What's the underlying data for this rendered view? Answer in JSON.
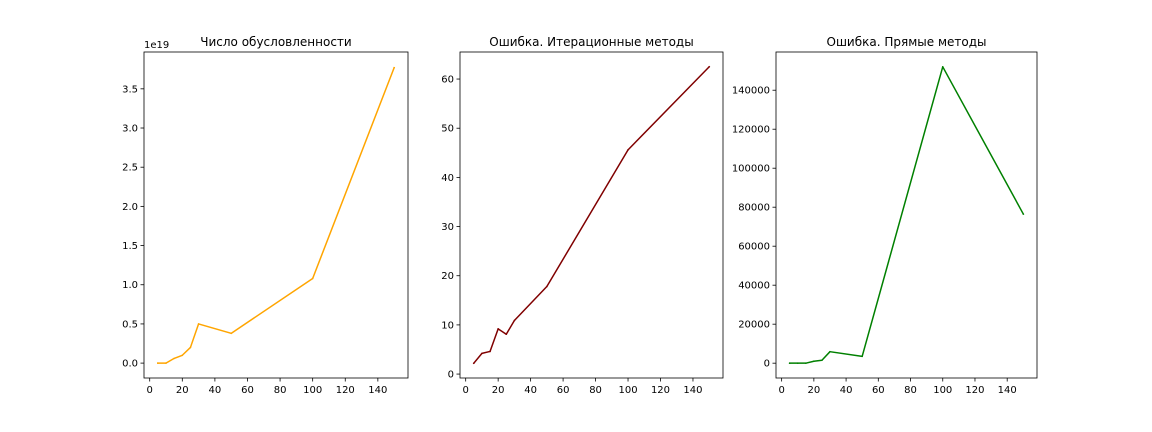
{
  "chart_data": [
    {
      "type": "line",
      "title": "Число обусловленности",
      "offset_label": "1e19",
      "color": "#ffa500",
      "x": [
        5,
        10,
        15,
        20,
        25,
        30,
        50,
        100,
        150
      ],
      "y": [
        0.0,
        0.0,
        0.06,
        0.1,
        0.2,
        0.5,
        0.38,
        1.08,
        3.77
      ],
      "xlim": [
        -3.5,
        158.5
      ],
      "ylim": [
        -0.19,
        3.97
      ],
      "xticks": [
        0,
        20,
        40,
        60,
        80,
        100,
        120,
        140
      ],
      "yticks": [
        0.0,
        0.5,
        1.0,
        1.5,
        2.0,
        2.5,
        3.0,
        3.5
      ],
      "yticklabels": [
        "0.0",
        "0.5",
        "1.0",
        "1.5",
        "2.0",
        "2.5",
        "3.0",
        "3.5"
      ]
    },
    {
      "type": "line",
      "title": "Ошибка. Итерационные методы",
      "offset_label": "",
      "color": "#800000",
      "x": [
        5,
        10,
        15,
        20,
        25,
        30,
        50,
        100,
        150
      ],
      "y": [
        2.2,
        4.2,
        4.6,
        9.2,
        8.1,
        10.9,
        17.8,
        45.6,
        62.5
      ],
      "xlim": [
        -3.5,
        158.5
      ],
      "ylim": [
        -0.8,
        65.5
      ],
      "xticks": [
        0,
        20,
        40,
        60,
        80,
        100,
        120,
        140
      ],
      "yticks": [
        0,
        10,
        20,
        30,
        40,
        50,
        60
      ],
      "yticklabels": [
        "0",
        "10",
        "20",
        "30",
        "40",
        "50",
        "60"
      ]
    },
    {
      "type": "line",
      "title": "Ошибка. Прямые методы",
      "offset_label": "",
      "color": "#008000",
      "x": [
        5,
        10,
        15,
        20,
        25,
        30,
        50,
        100,
        150
      ],
      "y": [
        0,
        0,
        0,
        1000,
        1500,
        5900,
        3500,
        152000,
        76500
      ],
      "xlim": [
        -3.5,
        158.5
      ],
      "ylim": [
        -7600,
        159600
      ],
      "xticks": [
        0,
        20,
        40,
        60,
        80,
        100,
        120,
        140
      ],
      "yticks": [
        0,
        20000,
        40000,
        60000,
        80000,
        100000,
        120000,
        140000
      ],
      "yticklabels": [
        "0",
        "20000",
        "40000",
        "60000",
        "80000",
        "100000",
        "120000",
        "140000"
      ]
    }
  ]
}
